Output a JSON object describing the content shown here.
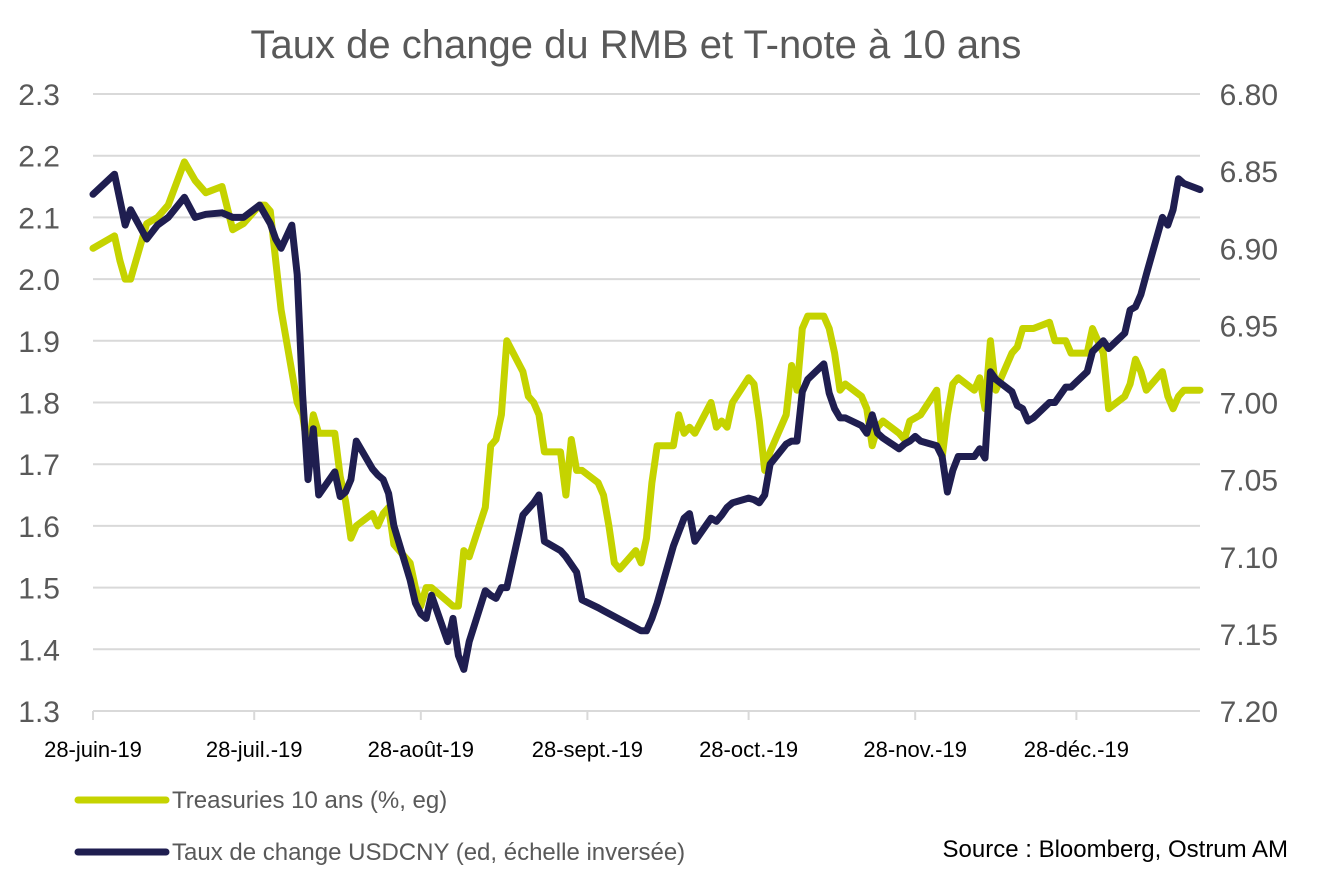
{
  "chart_data": {
    "type": "line",
    "title": "Taux de change du RMB et T-note à 10 ans",
    "source": "Source : Bloomberg, Ostrum AM",
    "grid": true,
    "legend_position": "bottom-left",
    "x_ticks": [
      "28-juin-19",
      "28-juil.-19",
      "28-août-19",
      "28-sept.-19",
      "28-oct.-19",
      "28-nov.-19",
      "28-déc.-19"
    ],
    "x_range": [
      "2019-06-28",
      "2020-01-20"
    ],
    "y_left": {
      "ticks": [
        "1.3",
        "1.4",
        "1.5",
        "1.6",
        "1.7",
        "1.8",
        "1.9",
        "2.0",
        "2.1",
        "2.2",
        "2.3"
      ],
      "min": 1.3,
      "max": 2.3
    },
    "y_right": {
      "ticks": [
        "6.80",
        "6.85",
        "6.90",
        "6.95",
        "7.00",
        "7.05",
        "7.10",
        "7.15",
        "7.20"
      ],
      "min": 6.8,
      "max": 7.2,
      "inverted": true
    },
    "series": [
      {
        "name": "Treasuries 10 ans (%, eg)",
        "axis": "left",
        "color": "#C5D300",
        "points": [
          [
            "2019-06-28",
            2.05
          ],
          [
            "2019-07-02",
            2.07
          ],
          [
            "2019-07-03",
            2.03
          ],
          [
            "2019-07-04",
            2.0
          ],
          [
            "2019-07-05",
            2.0
          ],
          [
            "2019-07-08",
            2.09
          ],
          [
            "2019-07-10",
            2.1
          ],
          [
            "2019-07-12",
            2.12
          ],
          [
            "2019-07-15",
            2.19
          ],
          [
            "2019-07-17",
            2.16
          ],
          [
            "2019-07-19",
            2.14
          ],
          [
            "2019-07-22",
            2.15
          ],
          [
            "2019-07-24",
            2.08
          ],
          [
            "2019-07-26",
            2.09
          ],
          [
            "2019-07-29",
            2.12
          ],
          [
            "2019-07-30",
            2.12
          ],
          [
            "2019-07-31",
            2.11
          ],
          [
            "2019-08-02",
            1.95
          ],
          [
            "2019-08-05",
            1.8
          ],
          [
            "2019-08-06",
            1.78
          ],
          [
            "2019-08-07",
            1.72
          ],
          [
            "2019-08-08",
            1.78
          ],
          [
            "2019-08-09",
            1.75
          ],
          [
            "2019-08-12",
            1.75
          ],
          [
            "2019-08-13",
            1.68
          ],
          [
            "2019-08-14",
            1.64
          ],
          [
            "2019-08-15",
            1.58
          ],
          [
            "2019-08-16",
            1.6
          ],
          [
            "2019-08-19",
            1.62
          ],
          [
            "2019-08-20",
            1.6
          ],
          [
            "2019-08-21",
            1.62
          ],
          [
            "2019-08-22",
            1.63
          ],
          [
            "2019-08-23",
            1.57
          ],
          [
            "2019-08-26",
            1.54
          ],
          [
            "2019-08-27",
            1.5
          ],
          [
            "2019-08-28",
            1.47
          ],
          [
            "2019-08-29",
            1.5
          ],
          [
            "2019-08-30",
            1.5
          ],
          [
            "2019-09-03",
            1.47
          ],
          [
            "2019-09-04",
            1.47
          ],
          [
            "2019-09-05",
            1.56
          ],
          [
            "2019-09-06",
            1.55
          ],
          [
            "2019-09-09",
            1.63
          ],
          [
            "2019-09-10",
            1.73
          ],
          [
            "2019-09-11",
            1.74
          ],
          [
            "2019-09-12",
            1.78
          ],
          [
            "2019-09-13",
            1.9
          ],
          [
            "2019-09-16",
            1.85
          ],
          [
            "2019-09-17",
            1.81
          ],
          [
            "2019-09-18",
            1.8
          ],
          [
            "2019-09-19",
            1.78
          ],
          [
            "2019-09-20",
            1.72
          ],
          [
            "2019-09-23",
            1.72
          ],
          [
            "2019-09-24",
            1.65
          ],
          [
            "2019-09-25",
            1.74
          ],
          [
            "2019-09-26",
            1.69
          ],
          [
            "2019-09-27",
            1.69
          ],
          [
            "2019-09-30",
            1.67
          ],
          [
            "2019-10-01",
            1.65
          ],
          [
            "2019-10-02",
            1.6
          ],
          [
            "2019-10-03",
            1.54
          ],
          [
            "2019-10-04",
            1.53
          ],
          [
            "2019-10-07",
            1.56
          ],
          [
            "2019-10-08",
            1.54
          ],
          [
            "2019-10-09",
            1.58
          ],
          [
            "2019-10-10",
            1.67
          ],
          [
            "2019-10-11",
            1.73
          ],
          [
            "2019-10-14",
            1.73
          ],
          [
            "2019-10-15",
            1.78
          ],
          [
            "2019-10-16",
            1.75
          ],
          [
            "2019-10-17",
            1.76
          ],
          [
            "2019-10-18",
            1.75
          ],
          [
            "2019-10-21",
            1.8
          ],
          [
            "2019-10-22",
            1.76
          ],
          [
            "2019-10-23",
            1.77
          ],
          [
            "2019-10-24",
            1.76
          ],
          [
            "2019-10-25",
            1.8
          ],
          [
            "2019-10-28",
            1.84
          ],
          [
            "2019-10-29",
            1.83
          ],
          [
            "2019-10-30",
            1.77
          ],
          [
            "2019-10-31",
            1.69
          ],
          [
            "2019-11-01",
            1.72
          ],
          [
            "2019-11-04",
            1.78
          ],
          [
            "2019-11-05",
            1.86
          ],
          [
            "2019-11-06",
            1.82
          ],
          [
            "2019-11-07",
            1.92
          ],
          [
            "2019-11-08",
            1.94
          ],
          [
            "2019-11-11",
            1.94
          ],
          [
            "2019-11-12",
            1.92
          ],
          [
            "2019-11-13",
            1.88
          ],
          [
            "2019-11-14",
            1.82
          ],
          [
            "2019-11-15",
            1.83
          ],
          [
            "2019-11-18",
            1.81
          ],
          [
            "2019-11-19",
            1.79
          ],
          [
            "2019-11-20",
            1.73
          ],
          [
            "2019-11-21",
            1.76
          ],
          [
            "2019-11-22",
            1.77
          ],
          [
            "2019-11-25",
            1.75
          ],
          [
            "2019-11-26",
            1.74
          ],
          [
            "2019-11-27",
            1.77
          ],
          [
            "2019-11-29",
            1.78
          ],
          [
            "2019-12-02",
            1.82
          ],
          [
            "2019-12-03",
            1.71
          ],
          [
            "2019-12-04",
            1.78
          ],
          [
            "2019-12-05",
            1.83
          ],
          [
            "2019-12-06",
            1.84
          ],
          [
            "2019-12-09",
            1.82
          ],
          [
            "2019-12-10",
            1.84
          ],
          [
            "2019-12-11",
            1.79
          ],
          [
            "2019-12-12",
            1.9
          ],
          [
            "2019-12-13",
            1.82
          ],
          [
            "2019-12-16",
            1.88
          ],
          [
            "2019-12-17",
            1.89
          ],
          [
            "2019-12-18",
            1.92
          ],
          [
            "2019-12-19",
            1.92
          ],
          [
            "2019-12-20",
            1.92
          ],
          [
            "2019-12-23",
            1.93
          ],
          [
            "2019-12-24",
            1.9
          ],
          [
            "2019-12-26",
            1.9
          ],
          [
            "2019-12-27",
            1.88
          ],
          [
            "2019-12-30",
            1.88
          ],
          [
            "2019-12-31",
            1.92
          ],
          [
            "2020-01-02",
            1.88
          ],
          [
            "2020-01-03",
            1.79
          ],
          [
            "2020-01-06",
            1.81
          ],
          [
            "2020-01-07",
            1.83
          ],
          [
            "2020-01-08",
            1.87
          ],
          [
            "2020-01-09",
            1.85
          ],
          [
            "2020-01-10",
            1.82
          ],
          [
            "2020-01-13",
            1.85
          ],
          [
            "2020-01-14",
            1.81
          ],
          [
            "2020-01-15",
            1.79
          ],
          [
            "2020-01-16",
            1.81
          ],
          [
            "2020-01-17",
            1.82
          ],
          [
            "2020-01-20",
            1.82
          ]
        ]
      },
      {
        "name": "Taux de change USDCNY (ed, échelle inversée)",
        "axis": "right",
        "color": "#1F1E50",
        "points": [
          [
            "2019-06-28",
            6.865
          ],
          [
            "2019-07-02",
            6.852
          ],
          [
            "2019-07-04",
            6.885
          ],
          [
            "2019-07-05",
            6.875
          ],
          [
            "2019-07-08",
            6.894
          ],
          [
            "2019-07-10",
            6.885
          ],
          [
            "2019-07-12",
            6.88
          ],
          [
            "2019-07-15",
            6.867
          ],
          [
            "2019-07-17",
            6.88
          ],
          [
            "2019-07-19",
            6.878
          ],
          [
            "2019-07-22",
            6.877
          ],
          [
            "2019-07-24",
            6.88
          ],
          [
            "2019-07-26",
            6.88
          ],
          [
            "2019-07-29",
            6.872
          ],
          [
            "2019-07-31",
            6.884
          ],
          [
            "2019-08-01",
            6.894
          ],
          [
            "2019-08-02",
            6.9
          ],
          [
            "2019-08-04",
            6.885
          ],
          [
            "2019-08-05",
            6.917
          ],
          [
            "2019-08-06",
            6.995
          ],
          [
            "2019-08-07",
            7.05
          ],
          [
            "2019-08-08",
            7.017
          ],
          [
            "2019-08-09",
            7.06
          ],
          [
            "2019-08-12",
            7.045
          ],
          [
            "2019-08-13",
            7.061
          ],
          [
            "2019-08-14",
            7.058
          ],
          [
            "2019-08-15",
            7.05
          ],
          [
            "2019-08-16",
            7.025
          ],
          [
            "2019-08-19",
            7.043
          ],
          [
            "2019-08-20",
            7.047
          ],
          [
            "2019-08-21",
            7.05
          ],
          [
            "2019-08-22",
            7.059
          ],
          [
            "2019-08-23",
            7.08
          ],
          [
            "2019-08-26",
            7.115
          ],
          [
            "2019-08-27",
            7.13
          ],
          [
            "2019-08-28",
            7.137
          ],
          [
            "2019-08-29",
            7.14
          ],
          [
            "2019-08-30",
            7.125
          ],
          [
            "2019-09-02",
            7.155
          ],
          [
            "2019-09-03",
            7.14
          ],
          [
            "2019-09-04",
            7.164
          ],
          [
            "2019-09-05",
            7.173
          ],
          [
            "2019-09-06",
            7.155
          ],
          [
            "2019-09-09",
            7.122
          ],
          [
            "2019-09-10",
            7.125
          ],
          [
            "2019-09-11",
            7.127
          ],
          [
            "2019-09-12",
            7.12
          ],
          [
            "2019-09-13",
            7.12
          ],
          [
            "2019-09-16",
            7.073
          ],
          [
            "2019-09-18",
            7.065
          ],
          [
            "2019-09-19",
            7.06
          ],
          [
            "2019-09-20",
            7.09
          ],
          [
            "2019-09-23",
            7.096
          ],
          [
            "2019-09-24",
            7.1
          ],
          [
            "2019-09-25",
            7.105
          ],
          [
            "2019-09-26",
            7.11
          ],
          [
            "2019-09-27",
            7.128
          ],
          [
            "2019-09-30",
            7.133
          ],
          [
            "2019-10-01",
            7.135
          ],
          [
            "2019-10-08",
            7.148
          ],
          [
            "2019-10-09",
            7.148
          ],
          [
            "2019-10-10",
            7.14
          ],
          [
            "2019-10-11",
            7.13
          ],
          [
            "2019-10-14",
            7.093
          ],
          [
            "2019-10-15",
            7.084
          ],
          [
            "2019-10-16",
            7.075
          ],
          [
            "2019-10-17",
            7.072
          ],
          [
            "2019-10-18",
            7.09
          ],
          [
            "2019-10-21",
            7.075
          ],
          [
            "2019-10-22",
            7.077
          ],
          [
            "2019-10-23",
            7.073
          ],
          [
            "2019-10-24",
            7.068
          ],
          [
            "2019-10-25",
            7.065
          ],
          [
            "2019-10-28",
            7.062
          ],
          [
            "2019-10-29",
            7.063
          ],
          [
            "2019-10-30",
            7.065
          ],
          [
            "2019-10-31",
            7.06
          ],
          [
            "2019-11-01",
            7.04
          ],
          [
            "2019-11-04",
            7.027
          ],
          [
            "2019-11-05",
            7.025
          ],
          [
            "2019-11-06",
            7.025
          ],
          [
            "2019-11-07",
            6.993
          ],
          [
            "2019-11-08",
            6.985
          ],
          [
            "2019-11-11",
            6.975
          ],
          [
            "2019-11-12",
            6.994
          ],
          [
            "2019-11-13",
            7.004
          ],
          [
            "2019-11-14",
            7.01
          ],
          [
            "2019-11-15",
            7.01
          ],
          [
            "2019-11-18",
            7.015
          ],
          [
            "2019-11-19",
            7.02
          ],
          [
            "2019-11-20",
            7.008
          ],
          [
            "2019-11-21",
            7.02
          ],
          [
            "2019-11-22",
            7.023
          ],
          [
            "2019-11-25",
            7.03
          ],
          [
            "2019-11-26",
            7.027
          ],
          [
            "2019-11-27",
            7.025
          ],
          [
            "2019-11-28",
            7.022
          ],
          [
            "2019-11-29",
            7.025
          ],
          [
            "2019-12-02",
            7.028
          ],
          [
            "2019-12-03",
            7.035
          ],
          [
            "2019-12-04",
            7.058
          ],
          [
            "2019-12-05",
            7.044
          ],
          [
            "2019-12-06",
            7.035
          ],
          [
            "2019-12-09",
            7.035
          ],
          [
            "2019-12-10",
            7.03
          ],
          [
            "2019-12-11",
            7.036
          ],
          [
            "2019-12-12",
            6.98
          ],
          [
            "2019-12-13",
            6.985
          ],
          [
            "2019-12-16",
            6.993
          ],
          [
            "2019-12-17",
            7.002
          ],
          [
            "2019-12-18",
            7.004
          ],
          [
            "2019-12-19",
            7.012
          ],
          [
            "2019-12-20",
            7.01
          ],
          [
            "2019-12-23",
            7.0
          ],
          [
            "2019-12-24",
            7.0
          ],
          [
            "2019-12-26",
            6.99
          ],
          [
            "2019-12-27",
            6.99
          ],
          [
            "2019-12-30",
            6.98
          ],
          [
            "2019-12-31",
            6.967
          ],
          [
            "2020-01-02",
            6.96
          ],
          [
            "2020-01-03",
            6.965
          ],
          [
            "2020-01-06",
            6.955
          ],
          [
            "2020-01-07",
            6.94
          ],
          [
            "2020-01-08",
            6.938
          ],
          [
            "2020-01-09",
            6.93
          ],
          [
            "2020-01-10",
            6.917
          ],
          [
            "2020-01-13",
            6.88
          ],
          [
            "2020-01-14",
            6.885
          ],
          [
            "2020-01-15",
            6.875
          ],
          [
            "2020-01-16",
            6.855
          ],
          [
            "2020-01-17",
            6.858
          ],
          [
            "2020-01-20",
            6.862
          ]
        ]
      }
    ]
  }
}
